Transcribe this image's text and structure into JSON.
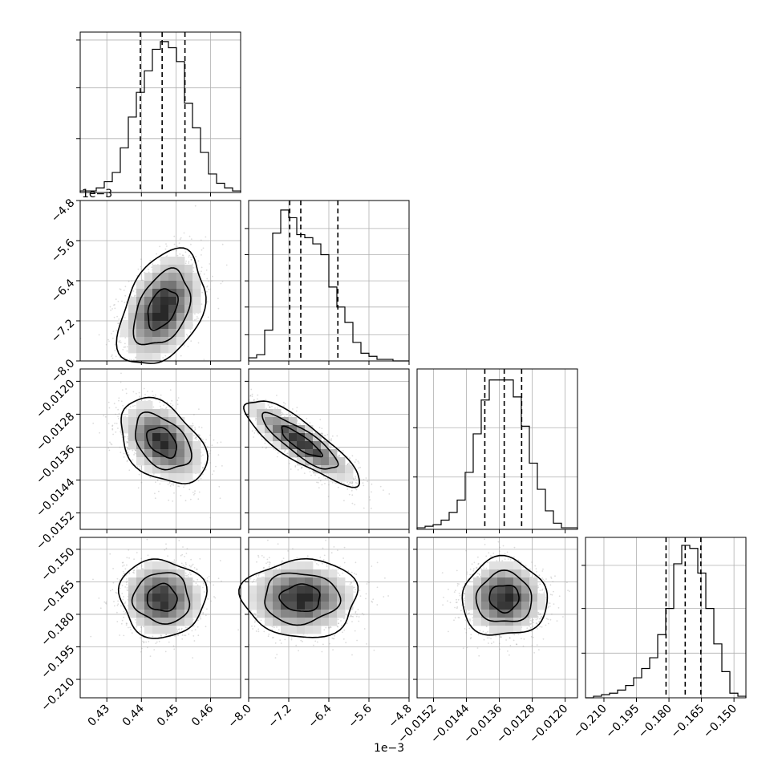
{
  "chart_data": {
    "type": "corner",
    "parameters": 4,
    "grid": true,
    "offset_labels": {
      "y_row1": "1e−3",
      "x_col1": "1e−3"
    },
    "axes_ticks": [
      {
        "values": [
          0.43,
          0.44,
          0.45,
          0.46
        ],
        "labels": [
          "0.43",
          "0.44",
          "0.45",
          "0.46"
        ]
      },
      {
        "values": [
          -8.0,
          -7.2,
          -6.4,
          -5.6,
          -4.8
        ],
        "labels": [
          "−8.0",
          "−7.2",
          "−6.4",
          "−5.6",
          "−4.8"
        ]
      },
      {
        "values": [
          -0.0152,
          -0.0144,
          -0.0136,
          -0.0128,
          -0.012
        ],
        "labels": [
          "−0.0152",
          "−0.0144",
          "−0.0136",
          "−0.0128",
          "−0.0120"
        ]
      },
      {
        "values": [
          -0.21,
          -0.195,
          -0.18,
          -0.165,
          -0.15
        ],
        "labels": [
          "−0.210",
          "−0.195",
          "−0.180",
          "−0.165",
          "−0.150"
        ]
      }
    ],
    "ranges": [
      [
        0.4223,
        0.4687
      ],
      [
        -8.0,
        -4.8
      ],
      [
        -0.0156,
        -0.0117
      ],
      [
        -0.2185,
        -0.1445
      ]
    ],
    "quantiles": [
      [
        0.4397,
        0.446,
        0.4526
      ],
      [
        -7.18,
        -6.96,
        -6.22
      ],
      [
        -0.013953,
        -0.013481,
        -0.013058
      ],
      [
        -0.18135,
        -0.1725,
        -0.16529
      ]
    ],
    "histograms": [
      [
        0.01,
        0.01,
        0.03,
        0.07,
        0.13,
        0.29,
        0.49,
        0.65,
        0.79,
        0.93,
        0.98,
        0.94,
        0.85,
        0.58,
        0.42,
        0.26,
        0.12,
        0.06,
        0.03,
        0.01
      ],
      [
        0.02,
        0.04,
        0.2,
        0.83,
        0.98,
        0.93,
        0.82,
        0.8,
        0.76,
        0.69,
        0.48,
        0.35,
        0.25,
        0.12,
        0.05,
        0.03,
        0.01,
        0.01,
        0.0,
        0.0
      ],
      [
        0.01,
        0.02,
        0.03,
        0.06,
        0.11,
        0.19,
        0.37,
        0.62,
        0.84,
        0.97,
        0.97,
        0.97,
        0.86,
        0.67,
        0.43,
        0.26,
        0.12,
        0.04,
        0.01,
        0.01
      ],
      [
        0.0,
        0.01,
        0.02,
        0.03,
        0.05,
        0.08,
        0.13,
        0.19,
        0.26,
        0.41,
        0.58,
        0.87,
        0.99,
        0.97,
        0.81,
        0.58,
        0.35,
        0.17,
        0.03,
        0.01
      ]
    ],
    "hist_yticks": [
      [
        0.35,
        0.68,
        0.99
      ],
      [
        0.17,
        0.35,
        0.52,
        0.69,
        0.86
      ],
      [
        0.34,
        0.66
      ],
      [
        0.29,
        0.58,
        0.86
      ]
    ],
    "centers": [
      0.446,
      -6.96,
      -0.01348,
      -0.1725
    ],
    "stds": [
      0.0054,
      0.5,
      0.00045,
      0.0078
    ],
    "correlations": {
      "1-0": 0.38,
      "2-0": -0.4,
      "2-1": -0.85,
      "3-0": -0.03,
      "3-1": 0.0,
      "3-2": 0.0
    }
  }
}
